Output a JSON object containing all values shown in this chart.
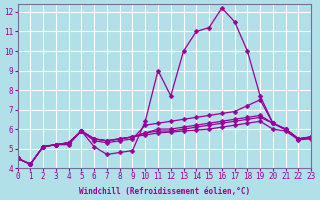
{
  "xlabel": "Windchill (Refroidissement éolien,°C)",
  "background_color": "#b2e0e8",
  "grid_color": "#ffffff",
  "line_color": "#990099",
  "x_ticks": [
    0,
    1,
    2,
    3,
    4,
    5,
    6,
    7,
    8,
    9,
    10,
    11,
    12,
    13,
    14,
    15,
    16,
    17,
    18,
    19,
    20,
    21,
    22,
    23
  ],
  "y_ticks": [
    4,
    5,
    6,
    7,
    8,
    9,
    10,
    11,
    12
  ],
  "xlim": [
    0,
    23
  ],
  "ylim": [
    4,
    12.4
  ],
  "curves": [
    [
      4.5,
      4.2,
      5.1,
      5.2,
      5.2,
      5.9,
      5.1,
      4.7,
      4.8,
      4.9,
      6.4,
      9.0,
      7.7,
      10.0,
      11.0,
      11.2,
      12.2,
      11.5,
      10.0,
      7.7,
      6.3,
      6.0,
      5.5,
      5.6
    ],
    [
      4.5,
      4.2,
      5.1,
      5.2,
      5.3,
      5.9,
      5.4,
      5.3,
      5.4,
      5.5,
      6.2,
      6.3,
      6.4,
      6.5,
      6.6,
      6.7,
      6.8,
      6.9,
      7.2,
      7.5,
      6.3,
      6.0,
      5.5,
      5.6
    ],
    [
      4.5,
      4.2,
      5.1,
      5.2,
      5.3,
      5.9,
      5.5,
      5.4,
      5.5,
      5.6,
      5.8,
      6.0,
      6.0,
      6.1,
      6.2,
      6.3,
      6.4,
      6.5,
      6.6,
      6.7,
      6.3,
      6.0,
      5.5,
      5.6
    ],
    [
      4.5,
      4.2,
      5.1,
      5.2,
      5.3,
      5.9,
      5.5,
      5.4,
      5.5,
      5.6,
      5.8,
      5.9,
      5.9,
      6.0,
      6.1,
      6.2,
      6.3,
      6.4,
      6.5,
      6.6,
      6.3,
      5.95,
      5.5,
      5.55
    ],
    [
      4.5,
      4.2,
      5.1,
      5.2,
      5.3,
      5.9,
      5.5,
      5.4,
      5.5,
      5.6,
      5.7,
      5.8,
      5.85,
      5.9,
      5.95,
      6.0,
      6.1,
      6.2,
      6.3,
      6.4,
      6.0,
      5.9,
      5.45,
      5.5
    ]
  ]
}
